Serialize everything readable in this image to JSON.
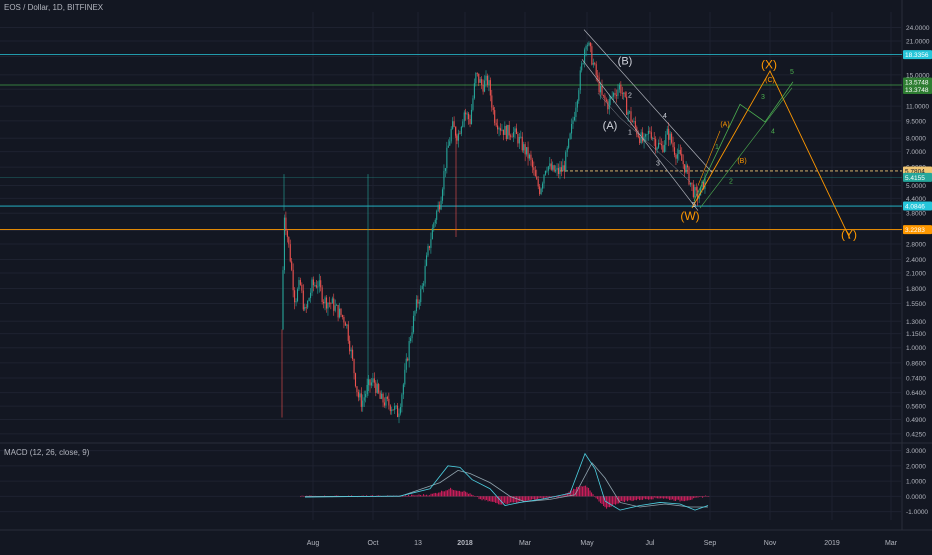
{
  "header": {
    "symbol_title": "EOS / Dollar, 1D, BITFINEX"
  },
  "macd": {
    "title": "MACD (12, 26, close, 9)"
  },
  "colors": {
    "background": "#131722",
    "grid": "#1e2230",
    "axis_text": "#b2b5be",
    "candle_up": "#26a69a",
    "candle_down": "#ef5350",
    "hline_cyan": "#26c6da",
    "hline_green": "#2e7d32",
    "hline_orange": "#ff9800",
    "hist": "#e91e63",
    "macd_line": "#4dd0e1",
    "signal_line": "#90a4ae",
    "wave_orange": "#ff9800",
    "wave_green": "#4caf50",
    "wave_white": "#d1d4dc"
  },
  "chart_data": [
    {
      "type": "candlestick",
      "scale": "log",
      "grid": true,
      "x_tick_labels": [
        "Aug",
        "Oct",
        "13",
        "2018",
        "Mar",
        "May",
        "Jul",
        "Sep",
        "Nov",
        "2019",
        "Mar"
      ],
      "y_tick_labels": [
        "24.0000",
        "21.0000",
        "18.0000",
        "15.0000",
        "13.0000",
        "11.0000",
        "9.5000",
        "8.0000",
        "7.0000",
        "6.0000",
        "5.0000",
        "4.4000",
        "3.8000",
        "3.2000",
        "2.8000",
        "2.4000",
        "2.1000",
        "1.8000",
        "1.5500",
        "1.3000",
        "1.1500",
        "1.0000",
        "0.8600",
        "0.7400",
        "0.6400",
        "0.5600",
        "0.4900",
        "0.4250"
      ],
      "y_tick_values": [
        24,
        21,
        18,
        15,
        13,
        11,
        9.5,
        8,
        7,
        6,
        5,
        4.4,
        3.8,
        3.2,
        2.8,
        2.4,
        2.1,
        1.8,
        1.55,
        1.3,
        1.15,
        1.0,
        0.86,
        0.74,
        0.64,
        0.56,
        0.49,
        0.425
      ],
      "ylim": [
        0.4,
        28
      ],
      "price_markers": [
        {
          "label": "18.3356",
          "value": 18.34,
          "color": "#26c6da"
        },
        {
          "label": "13.5748",
          "value": 13.57,
          "color": "#2e7d32"
        },
        {
          "label": "13.3748",
          "value": 13.37,
          "color": "#2e7d32"
        },
        {
          "label": "5.7804",
          "value": 5.78,
          "color": "#f0c674"
        },
        {
          "label": "5.4155",
          "value": 5.42,
          "color": "#26a69a"
        },
        {
          "label": "4.0846",
          "value": 4.08,
          "color": "#26c6da"
        },
        {
          "label": "3.2283",
          "value": 3.23,
          "color": "#ff9800"
        }
      ],
      "wave_labels": [
        {
          "text": "(B)",
          "color": "#d1d4dc",
          "size": 11,
          "price": 16.6
        },
        {
          "text": "(A)",
          "color": "#d1d4dc",
          "size": 11,
          "price": 8.75
        },
        {
          "text": "(W)",
          "color": "#ff9800",
          "size": 12,
          "price": 3.55
        },
        {
          "text": "(X)",
          "color": "#ff9800",
          "size": 12,
          "price": 16.0
        },
        {
          "text": "(Y)",
          "color": "#ff9800",
          "size": 12,
          "price": 2.95
        },
        {
          "text": "(A)",
          "color": "#ff9800",
          "size": 7,
          "price": 9.0
        },
        {
          "text": "(B)",
          "color": "#ff9800",
          "size": 7,
          "price": 6.25
        },
        {
          "text": "(C)",
          "color": "#ff9800",
          "size": 7,
          "price": 14.0
        },
        {
          "text": "1",
          "color": "#d1d4dc",
          "size": 7,
          "price": 8.3
        },
        {
          "text": "2",
          "color": "#d1d4dc",
          "size": 7,
          "price": 12.0
        },
        {
          "text": "3",
          "color": "#d1d4dc",
          "size": 7,
          "price": 6.1
        },
        {
          "text": "4",
          "color": "#d1d4dc",
          "size": 7,
          "price": 9.8
        },
        {
          "text": "5",
          "color": "#d1d4dc",
          "size": 7,
          "price": 4.05
        },
        {
          "text": "1",
          "color": "#4caf50",
          "size": 7,
          "price": 7.2
        },
        {
          "text": "2",
          "color": "#4caf50",
          "size": 7,
          "price": 5.1
        },
        {
          "text": "3",
          "color": "#4caf50",
          "size": 7,
          "price": 11.8
        },
        {
          "text": "4",
          "color": "#4caf50",
          "size": 7,
          "price": 8.4
        },
        {
          "text": "5",
          "color": "#4caf50",
          "size": 7,
          "price": 15.1
        }
      ]
    },
    {
      "type": "macd",
      "y_tick_labels": [
        "3.0000",
        "2.0000",
        "1.0000",
        "0.0000",
        "-1.0000"
      ],
      "y_tick_values": [
        3,
        2,
        1,
        0,
        -1
      ],
      "ylim": [
        -1.55,
        3.3
      ]
    }
  ]
}
